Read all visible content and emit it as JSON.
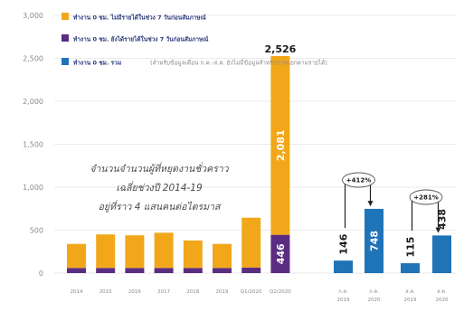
{
  "colors": {
    "no_income": "#F2A71B",
    "with_income": "#5B2D82",
    "total": "#1F73B7",
    "grid": "#e3e3e3",
    "arrow": "#222222"
  },
  "chart_data": {
    "type": "bar",
    "ylim": [
      0,
      3000
    ],
    "yticks": [
      "0",
      "500",
      "1,000",
      "1,500",
      "2,000",
      "2,500",
      "3,000"
    ],
    "legend": [
      {
        "label": "ทำงาน 0 ชม. ไม่มีรายได้ในช่วง 7 วันก่อนสัมภาษณ์",
        "color_key": "no_income"
      },
      {
        "label": "ทำงาน 0 ชม. ยังได้รายได้ในช่วง 7 วันก่อนสัมภาษณ์",
        "color_key": "with_income"
      },
      {
        "label": "ทำงาน 0 ชม. รวม",
        "sub": "(สำหรับข้อมูลเดือน ก.ค.-ส.ค. ยังไม่มีข้อมูลสำหรับการแยกตามรายได้)",
        "color_key": "total"
      }
    ],
    "stacked": {
      "categories": [
        "2014",
        "2015",
        "2016",
        "2017",
        "2018",
        "2019",
        "Q1/2020",
        "Q2/2020"
      ],
      "no_income": [
        280,
        390,
        380,
        410,
        320,
        280,
        580,
        2081
      ],
      "with_income": [
        60,
        60,
        60,
        60,
        60,
        60,
        65,
        446
      ],
      "total_labels": [
        "",
        "",
        "",
        "",
        "",
        "",
        "",
        "2,526"
      ],
      "segment_labels_no_income": [
        "",
        "",
        "",
        "",
        "",
        "",
        "",
        "2,081"
      ],
      "segment_labels_with_income": [
        "",
        "",
        "",
        "",
        "",
        "",
        "",
        "446"
      ]
    },
    "totals": {
      "categories": [
        "ก.ค. 2019",
        "ก.ค. 2020",
        "ส.ค. 2019",
        "ส.ค. 2020"
      ],
      "tick_line1": [
        "ก.ค.",
        "ก.ค.",
        "ส.ค.",
        "ส.ค."
      ],
      "tick_line2": [
        "2019",
        "2020",
        "2019",
        "2020"
      ],
      "values": [
        146,
        748,
        115,
        438
      ],
      "labels": [
        "146",
        "748",
        "115",
        "438"
      ]
    },
    "changes": [
      {
        "label": "+412%",
        "from": "ก.ค. 2019",
        "to": "ก.ค. 2020"
      },
      {
        "label": "+281%",
        "from": "ส.ค. 2019",
        "to": "ส.ค. 2020"
      }
    ],
    "annotation": [
      "จำนวนจำนวนผู้ที่หยุดงานชั่วคราว",
      "เฉลี่ยช่วงปี 2014-19",
      "อยู่ที่ราว 4 แสนคนต่อไตรมาส"
    ]
  }
}
